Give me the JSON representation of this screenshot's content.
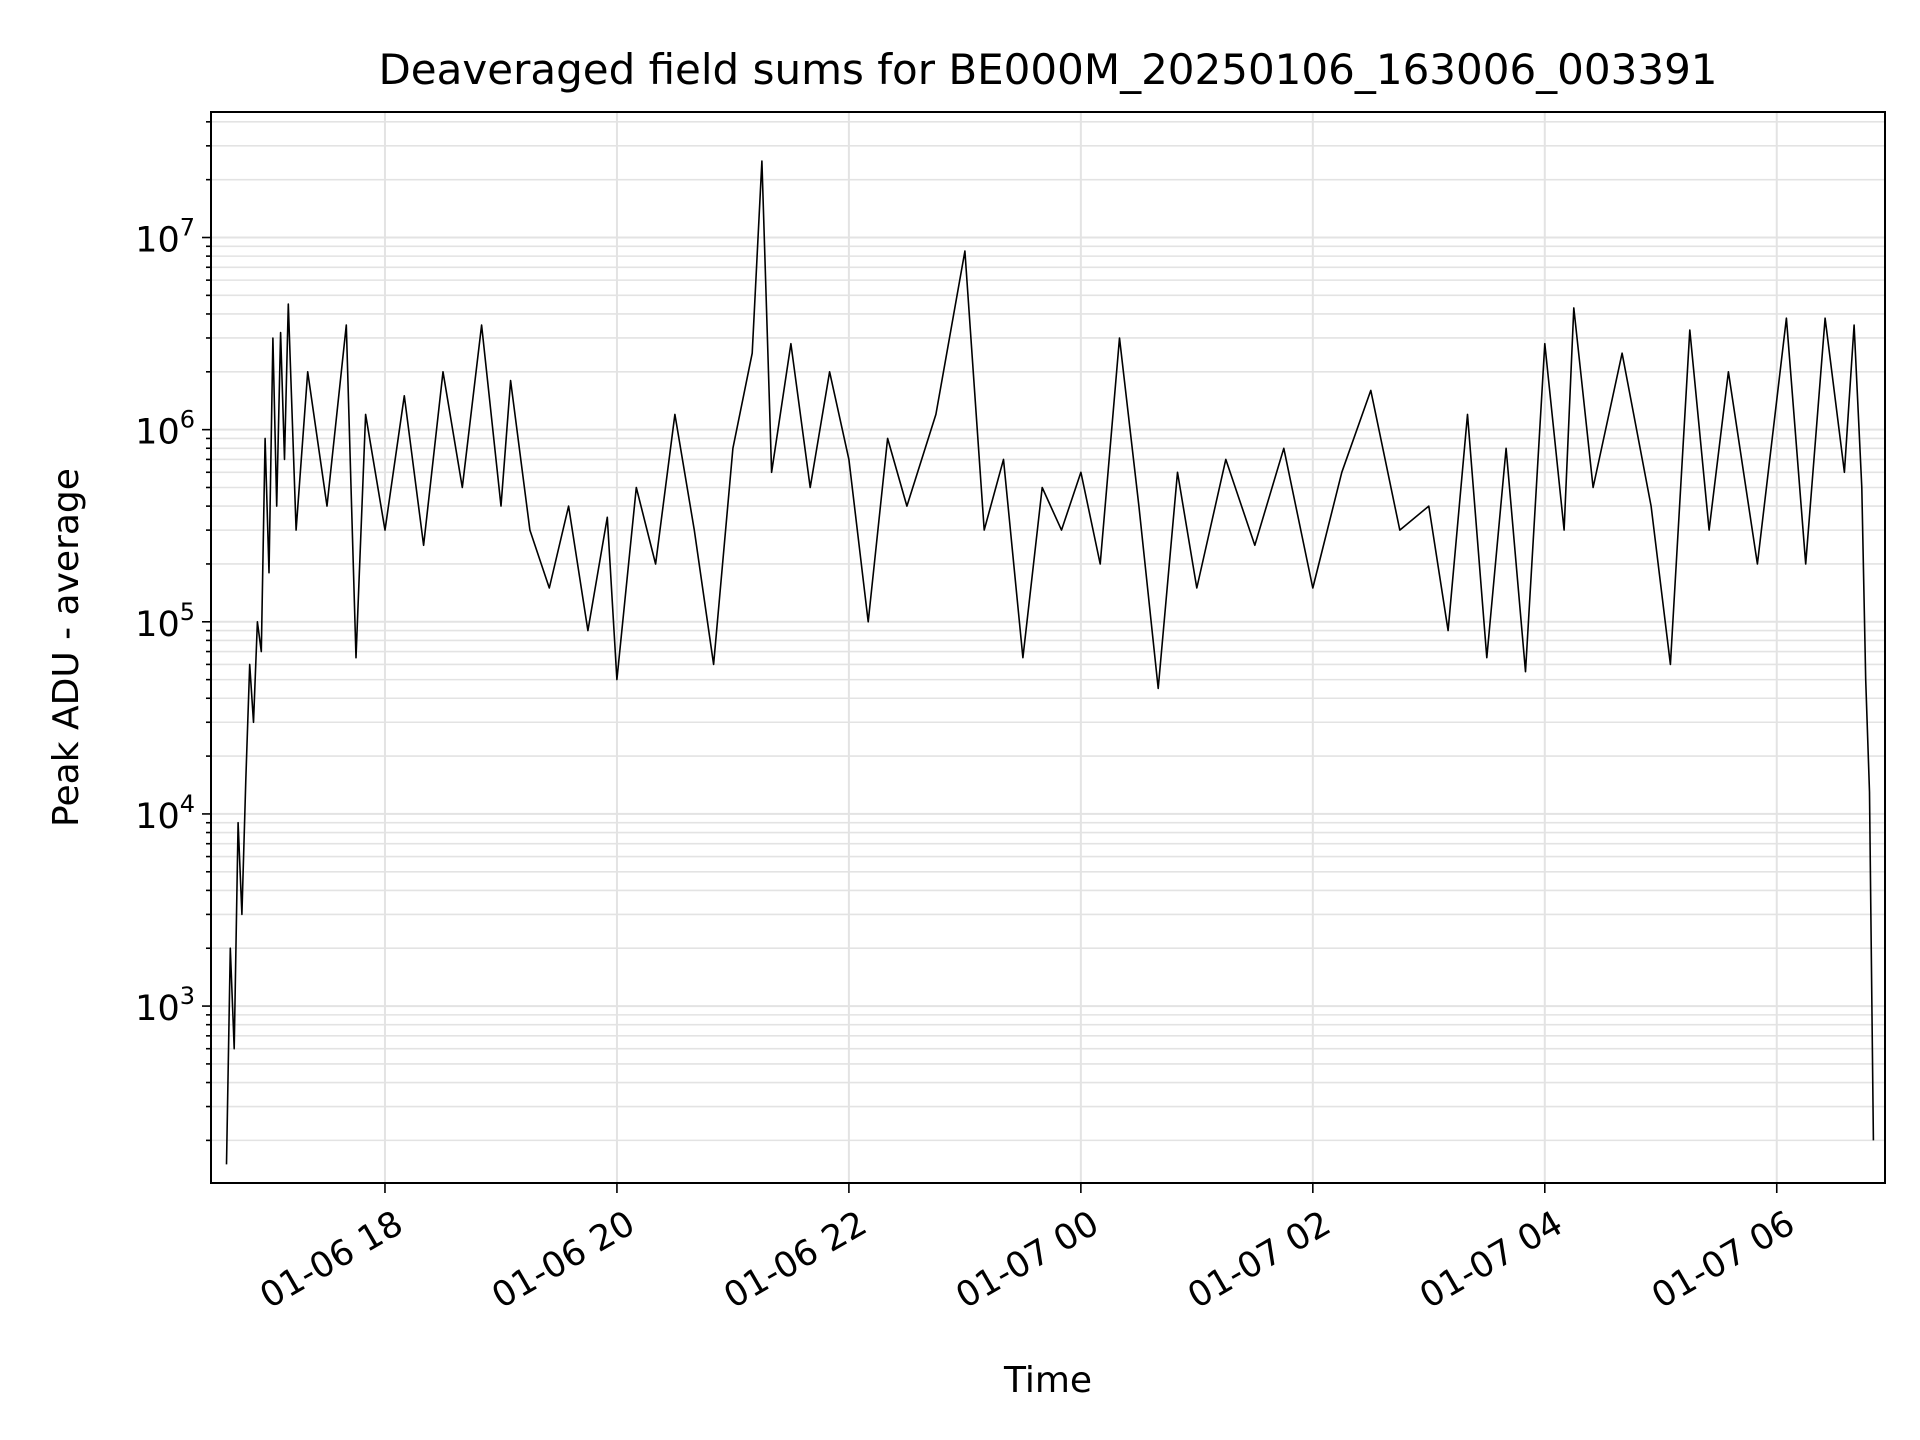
{
  "chart_data": {
    "type": "line",
    "title": "Deaveraged field sums for BE000M_20250106_163006_003391",
    "xlabel": "Time",
    "ylabel": "Peak ADU - average",
    "y_scale": "log",
    "ylim": [
      120,
      45000000
    ],
    "xlim": [
      "2025-01-06 16:30",
      "2025-01-07 06:56"
    ],
    "grid": true,
    "line_color": "#000000",
    "x_ticks": [
      {
        "value": "2025-01-06 18:00",
        "label": "01-06 18"
      },
      {
        "value": "2025-01-06 20:00",
        "label": "01-06 20"
      },
      {
        "value": "2025-01-06 22:00",
        "label": "01-06 22"
      },
      {
        "value": "2025-01-07 00:00",
        "label": "01-07 00"
      },
      {
        "value": "2025-01-07 02:00",
        "label": "01-07 02"
      },
      {
        "value": "2025-01-07 04:00",
        "label": "01-07 04"
      },
      {
        "value": "2025-01-07 06:00",
        "label": "01-07 06"
      }
    ],
    "y_ticks": [
      {
        "value": 1000,
        "base": "10",
        "exp": "3"
      },
      {
        "value": 10000,
        "base": "10",
        "exp": "4"
      },
      {
        "value": 100000,
        "base": "10",
        "exp": "5"
      },
      {
        "value": 1000000,
        "base": "10",
        "exp": "6"
      },
      {
        "value": 10000000,
        "base": "10",
        "exp": "7"
      }
    ],
    "series": [
      {
        "points": [
          [
            "2025-01-06 16:38",
            150
          ],
          [
            "2025-01-06 16:40",
            2000
          ],
          [
            "2025-01-06 16:42",
            600
          ],
          [
            "2025-01-06 16:44",
            9000
          ],
          [
            "2025-01-06 16:46",
            3000
          ],
          [
            "2025-01-06 16:48",
            15000
          ],
          [
            "2025-01-06 16:50",
            60000
          ],
          [
            "2025-01-06 16:52",
            30000
          ],
          [
            "2025-01-06 16:54",
            100000
          ],
          [
            "2025-01-06 16:56",
            70000
          ],
          [
            "2025-01-06 16:58",
            900000
          ],
          [
            "2025-01-06 17:00",
            180000
          ],
          [
            "2025-01-06 17:02",
            3000000
          ],
          [
            "2025-01-06 17:04",
            400000
          ],
          [
            "2025-01-06 17:06",
            3200000
          ],
          [
            "2025-01-06 17:08",
            700000
          ],
          [
            "2025-01-06 17:10",
            4500000
          ],
          [
            "2025-01-06 17:14",
            300000
          ],
          [
            "2025-01-06 17:20",
            2000000
          ],
          [
            "2025-01-06 17:30",
            400000
          ],
          [
            "2025-01-06 17:40",
            3500000
          ],
          [
            "2025-01-06 17:45",
            65000
          ],
          [
            "2025-01-06 17:50",
            1200000
          ],
          [
            "2025-01-06 18:00",
            300000
          ],
          [
            "2025-01-06 18:10",
            1500000
          ],
          [
            "2025-01-06 18:20",
            250000
          ],
          [
            "2025-01-06 18:30",
            2000000
          ],
          [
            "2025-01-06 18:40",
            500000
          ],
          [
            "2025-01-06 18:50",
            3500000
          ],
          [
            "2025-01-06 19:00",
            400000
          ],
          [
            "2025-01-06 19:05",
            1800000
          ],
          [
            "2025-01-06 19:15",
            300000
          ],
          [
            "2025-01-06 19:25",
            150000
          ],
          [
            "2025-01-06 19:35",
            400000
          ],
          [
            "2025-01-06 19:45",
            90000
          ],
          [
            "2025-01-06 19:55",
            350000
          ],
          [
            "2025-01-06 20:00",
            50000
          ],
          [
            "2025-01-06 20:10",
            500000
          ],
          [
            "2025-01-06 20:20",
            200000
          ],
          [
            "2025-01-06 20:30",
            1200000
          ],
          [
            "2025-01-06 20:40",
            300000
          ],
          [
            "2025-01-06 20:50",
            60000
          ],
          [
            "2025-01-06 21:00",
            800000
          ],
          [
            "2025-01-06 21:10",
            2500000
          ],
          [
            "2025-01-06 21:15",
            25000000
          ],
          [
            "2025-01-06 21:20",
            600000
          ],
          [
            "2025-01-06 21:30",
            2800000
          ],
          [
            "2025-01-06 21:40",
            500000
          ],
          [
            "2025-01-06 21:50",
            2000000
          ],
          [
            "2025-01-06 22:00",
            700000
          ],
          [
            "2025-01-06 22:10",
            100000
          ],
          [
            "2025-01-06 22:20",
            900000
          ],
          [
            "2025-01-06 22:30",
            400000
          ],
          [
            "2025-01-06 22:45",
            1200000
          ],
          [
            "2025-01-06 23:00",
            8500000
          ],
          [
            "2025-01-06 23:10",
            300000
          ],
          [
            "2025-01-06 23:20",
            700000
          ],
          [
            "2025-01-06 23:30",
            65000
          ],
          [
            "2025-01-06 23:40",
            500000
          ],
          [
            "2025-01-06 23:50",
            300000
          ],
          [
            "2025-01-07 00:00",
            600000
          ],
          [
            "2025-01-07 00:10",
            200000
          ],
          [
            "2025-01-07 00:20",
            3000000
          ],
          [
            "2025-01-07 00:30",
            400000
          ],
          [
            "2025-01-07 00:40",
            45000
          ],
          [
            "2025-01-07 00:50",
            600000
          ],
          [
            "2025-01-07 01:00",
            150000
          ],
          [
            "2025-01-07 01:15",
            700000
          ],
          [
            "2025-01-07 01:30",
            250000
          ],
          [
            "2025-01-07 01:45",
            800000
          ],
          [
            "2025-01-07 02:00",
            150000
          ],
          [
            "2025-01-07 02:15",
            600000
          ],
          [
            "2025-01-07 02:30",
            1600000
          ],
          [
            "2025-01-07 02:45",
            300000
          ],
          [
            "2025-01-07 03:00",
            400000
          ],
          [
            "2025-01-07 03:10",
            90000
          ],
          [
            "2025-01-07 03:20",
            1200000
          ],
          [
            "2025-01-07 03:30",
            65000
          ],
          [
            "2025-01-07 03:40",
            800000
          ],
          [
            "2025-01-07 03:50",
            55000
          ],
          [
            "2025-01-07 04:00",
            2800000
          ],
          [
            "2025-01-07 04:10",
            300000
          ],
          [
            "2025-01-07 04:15",
            4300000
          ],
          [
            "2025-01-07 04:25",
            500000
          ],
          [
            "2025-01-07 04:40",
            2500000
          ],
          [
            "2025-01-07 04:55",
            400000
          ],
          [
            "2025-01-07 05:05",
            60000
          ],
          [
            "2025-01-07 05:15",
            3300000
          ],
          [
            "2025-01-07 05:25",
            300000
          ],
          [
            "2025-01-07 05:35",
            2000000
          ],
          [
            "2025-01-07 05:50",
            200000
          ],
          [
            "2025-01-07 06:05",
            3800000
          ],
          [
            "2025-01-07 06:15",
            200000
          ],
          [
            "2025-01-07 06:25",
            3800000
          ],
          [
            "2025-01-07 06:35",
            600000
          ],
          [
            "2025-01-07 06:40",
            3500000
          ],
          [
            "2025-01-07 06:44",
            500000
          ],
          [
            "2025-01-07 06:46",
            50000
          ],
          [
            "2025-01-07 06:48",
            13000
          ],
          [
            "2025-01-07 06:50",
            200
          ]
        ]
      }
    ]
  }
}
